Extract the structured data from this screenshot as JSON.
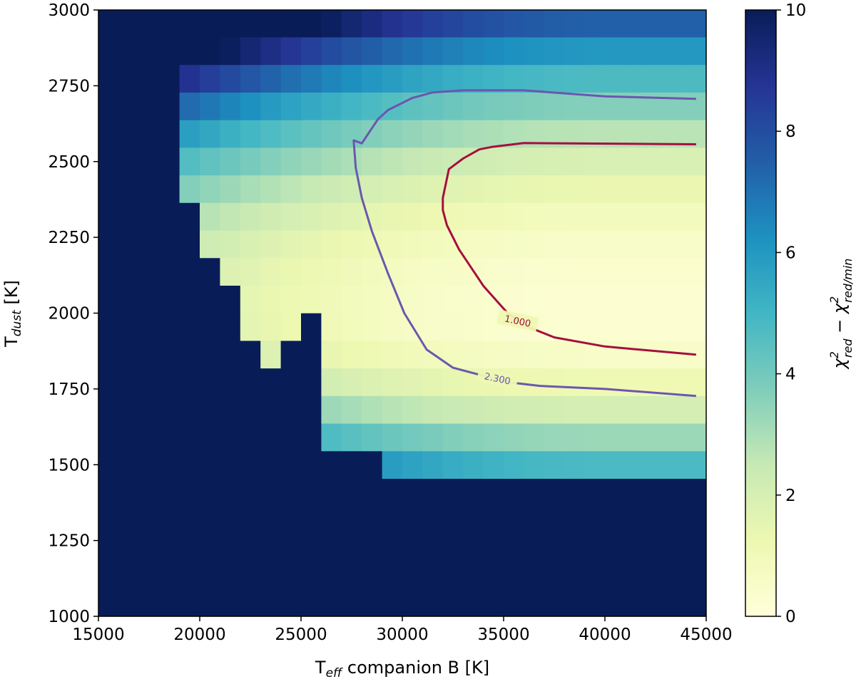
{
  "chart_data": {
    "type": "heatmap",
    "xlabel": "T",
    "xlabel_sub": "eff",
    "xlabel_rest": " companion B [K]",
    "ylabel": "T",
    "ylabel_sub": "dust",
    "ylabel_rest": " [K]",
    "colorbar_label": {
      "base1": "χ",
      "sup1": "2",
      "sub1": "red",
      "op": " − ",
      "base2": "χ",
      "sup2": "2",
      "sub2": "red/min"
    },
    "xlim": [
      15000,
      45000
    ],
    "ylim": [
      1000,
      3000
    ],
    "clim": [
      0,
      10
    ],
    "xticks": [
      "15000",
      "20000",
      "25000",
      "30000",
      "35000",
      "40000",
      "45000"
    ],
    "yticks": [
      "1000",
      "1250",
      "1500",
      "1750",
      "2000",
      "2250",
      "2500",
      "2750",
      "3000"
    ],
    "colorbar_ticks": [
      "0",
      "2",
      "4",
      "6",
      "8",
      "10"
    ],
    "colormap": [
      "#ffffd9",
      "#edf8b1",
      "#c7e9b4",
      "#7fcdbb",
      "#41b6c4",
      "#1d91c0",
      "#225ea8",
      "#253494",
      "#081d58"
    ],
    "grid_x_step": 1000,
    "grid_y_step": 91,
    "contours": [
      {
        "level": "1.000",
        "color": "#a50f3f",
        "points": [
          [
            44500,
            2557
          ],
          [
            36000,
            2561
          ],
          [
            34400,
            2548
          ],
          [
            33800,
            2540
          ],
          [
            33000,
            2510
          ],
          [
            32300,
            2475
          ],
          [
            32000,
            2380
          ],
          [
            32000,
            2340
          ],
          [
            32200,
            2290
          ],
          [
            32800,
            2210
          ],
          [
            33500,
            2140
          ],
          [
            34000,
            2090
          ],
          [
            34800,
            2030
          ],
          [
            35200,
            2000
          ],
          [
            36000,
            1960
          ],
          [
            37500,
            1920
          ],
          [
            40000,
            1890
          ],
          [
            44500,
            1863
          ]
        ],
        "label_x": 35700,
        "label_y": 1975
      },
      {
        "level": "2.300",
        "color": "#6a57b0",
        "points": [
          [
            44500,
            2707
          ],
          [
            40000,
            2715
          ],
          [
            36000,
            2735
          ],
          [
            33000,
            2735
          ],
          [
            31500,
            2728
          ],
          [
            30500,
            2710
          ],
          [
            29300,
            2670
          ],
          [
            28800,
            2640
          ],
          [
            28000,
            2560
          ],
          [
            27600,
            2570
          ],
          [
            27700,
            2480
          ],
          [
            28000,
            2380
          ],
          [
            28500,
            2270
          ],
          [
            29300,
            2130
          ],
          [
            30100,
            2000
          ],
          [
            31200,
            1880
          ],
          [
            32500,
            1820
          ],
          [
            34200,
            1790
          ],
          [
            35500,
            1770
          ],
          [
            36800,
            1760
          ],
          [
            40000,
            1750
          ],
          [
            44500,
            1727
          ]
        ],
        "label_x": 34700,
        "label_y": 1785
      }
    ]
  }
}
